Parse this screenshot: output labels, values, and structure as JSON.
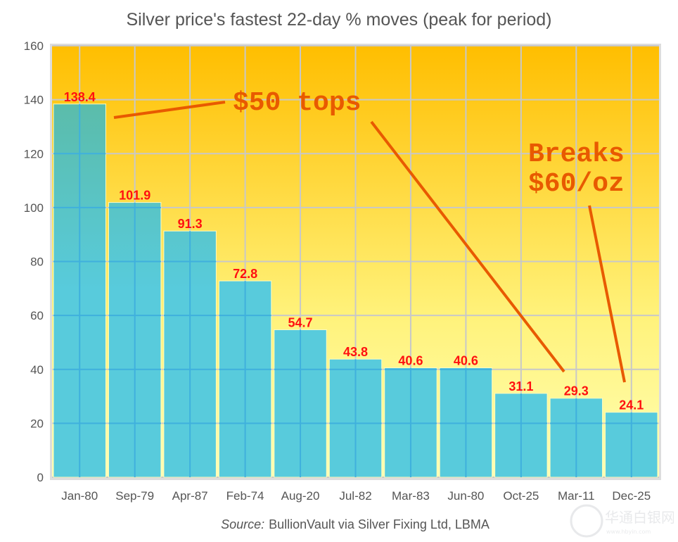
{
  "chart_data": {
    "type": "bar",
    "title": "Silver price's fastest 22-day % moves (peak for period)",
    "xlabel": "",
    "ylabel": "",
    "ylim": [
      0,
      160
    ],
    "yticks": [
      0,
      20,
      40,
      60,
      80,
      100,
      120,
      140,
      160
    ],
    "ytick_labels": [
      "0",
      "20",
      "40",
      "60",
      "80",
      "100",
      "120",
      "140",
      "160"
    ],
    "grid": true,
    "legend": "none",
    "categories": [
      "Jan-80",
      "Sep-79",
      "Apr-87",
      "Feb-74",
      "Aug-20",
      "Jul-82",
      "Mar-83",
      "Jun-80",
      "Oct-25",
      "Mar-11",
      "Dec-25"
    ],
    "values": [
      138.4,
      101.9,
      91.3,
      72.8,
      54.7,
      43.8,
      40.6,
      40.6,
      31.1,
      29.3,
      24.1
    ],
    "data_labels": [
      "138.4",
      "101.9",
      "91.3",
      "72.8",
      "54.7",
      "43.8",
      "40.6",
      "40.6",
      "31.1",
      "29.3",
      "24.1"
    ],
    "annotations": [
      {
        "text": "$50 tops",
        "points_to": [
          "Jan-80",
          "Mar-11"
        ]
      },
      {
        "text_lines": [
          "Breaks",
          "$60/oz"
        ],
        "points_to": [
          "Dec-25"
        ]
      }
    ],
    "source_label": "Source:",
    "source_text": "BullionVault via Silver Fixing Ltd, LBMA"
  },
  "colors": {
    "bar_fill": "#58cbdc",
    "bar_fill_top": "#5bbcaa",
    "bar_edge": "#fffbc0",
    "bg_top": "#ffbe00",
    "bg_bottom": "#ffffb4",
    "grid": "#c8c8c8",
    "data_label": "#ff1010",
    "annotation": "#e85a00",
    "text": "#555555"
  },
  "watermark": {
    "text": "华通白银网",
    "sub": "www.hbyin.com"
  }
}
